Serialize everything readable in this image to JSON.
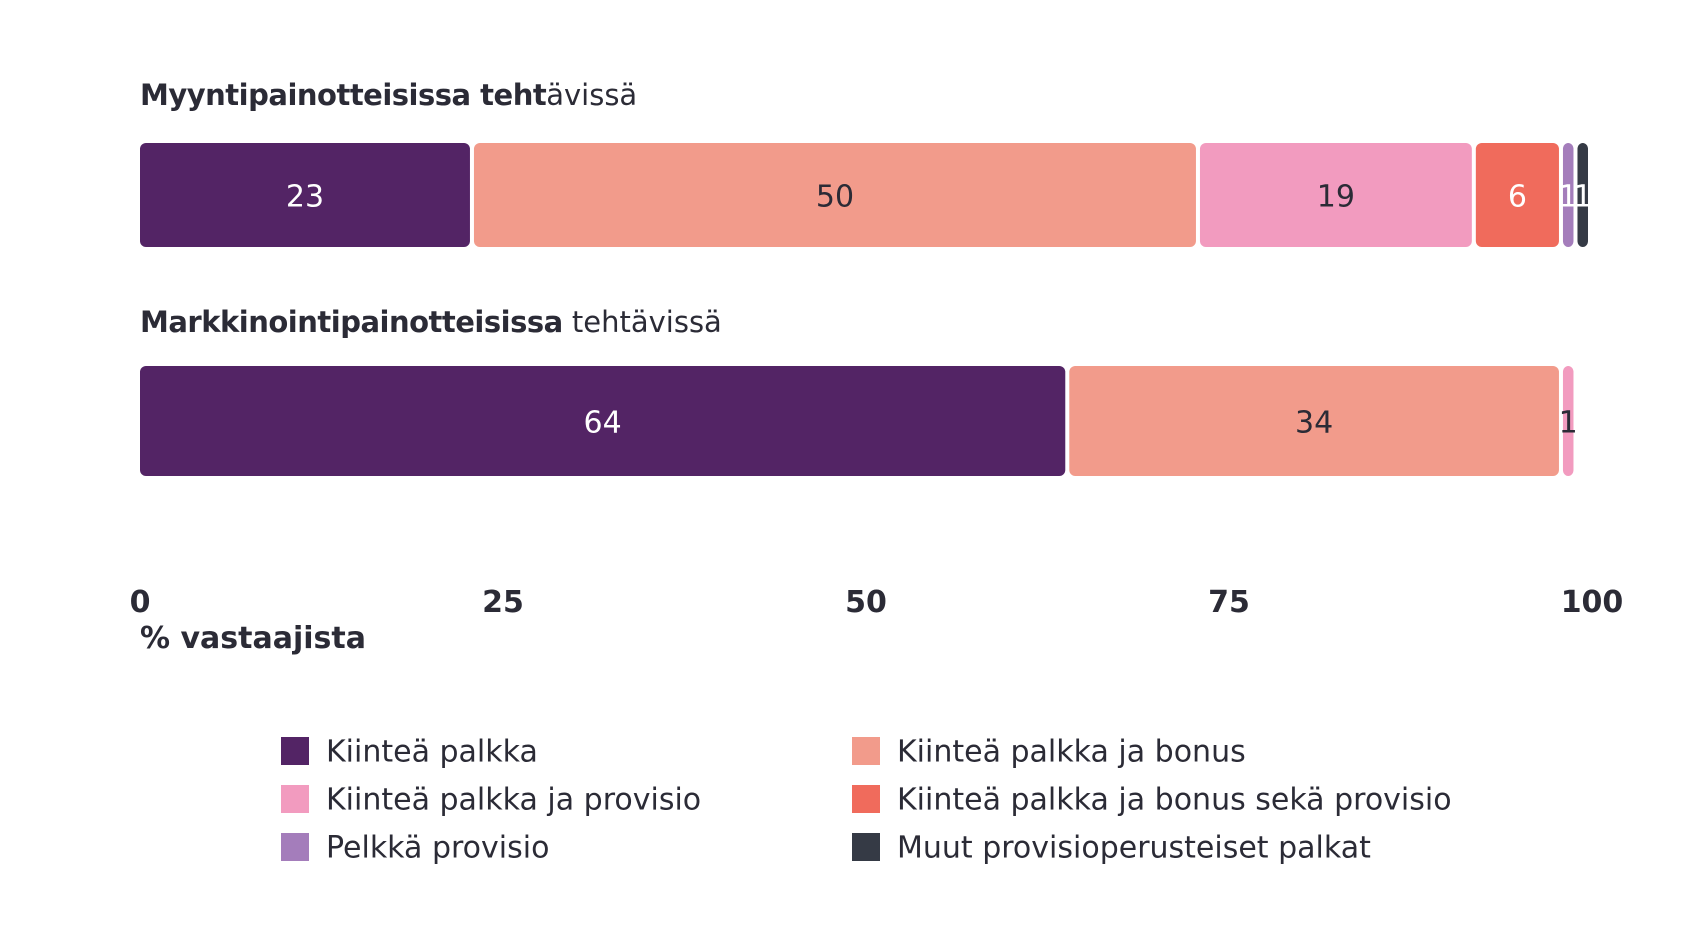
{
  "chart_data": {
    "type": "bar",
    "orientation": "horizontal-stacked",
    "categories": [
      {
        "bold": "Myyntipainotteisissa teht",
        "regular": "ävissä"
      },
      {
        "bold": "Markkinointipainotteisissa",
        "regular": " tehtävissä"
      }
    ],
    "series": [
      {
        "name": "Kiinteä palkka",
        "color": "#532465",
        "label_color": "#ffffff",
        "values": [
          23,
          64
        ]
      },
      {
        "name": "Kiinteä palkka ja bonus",
        "color": "#f29b8b",
        "label_color": "#2b2b36",
        "values": [
          50,
          34
        ]
      },
      {
        "name": "Kiinteä palkka ja provisio",
        "color": "#f29bbf",
        "label_color": "#2b2b36",
        "values": [
          19,
          1
        ]
      },
      {
        "name": "Kiinteä palkka ja bonus sekä provisio",
        "color": "#f06b5c",
        "label_color": "#ffffff",
        "values": [
          6,
          0
        ]
      },
      {
        "name": "Pelkkä provisio",
        "color": "#a47dbb",
        "label_color": "#ffffff",
        "values": [
          1,
          0
        ]
      },
      {
        "name": "Muut provisioperusteiset palkat",
        "color": "#353a45",
        "label_color": "#ffffff",
        "values": [
          1,
          0
        ]
      }
    ],
    "xticks": [
      0,
      25,
      50,
      75,
      100
    ],
    "xlim": [
      0,
      100
    ],
    "xlabel": "% vastaajista",
    "grid": false,
    "legend_position": "bottom"
  }
}
